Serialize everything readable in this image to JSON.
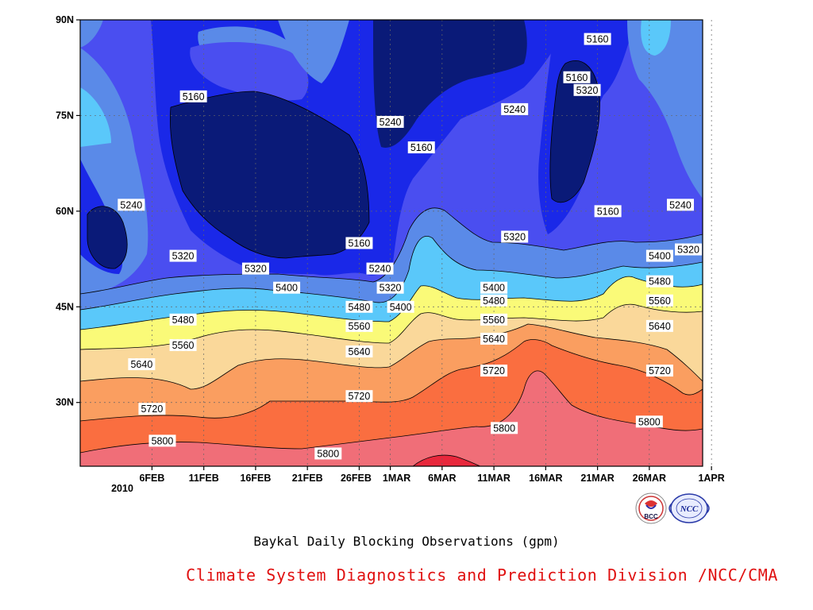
{
  "chart_data": {
    "type": "heatmap",
    "title": "Baykal Daily Blocking Observations (gpm)",
    "y_ticks": [
      "30N",
      "45N",
      "60N",
      "75N",
      "90N"
    ],
    "x_ticks": [
      "6FEB",
      "11FEB",
      "16FEB",
      "21FEB",
      "26FEB",
      "1MAR",
      "6MAR",
      "11MAR",
      "16MAR",
      "21MAR",
      "26MAR",
      "1APR"
    ],
    "x_year": "2010",
    "ylim": [
      20,
      90
    ],
    "contour_levels": [
      5160,
      5240,
      5320,
      5400,
      5480,
      5560,
      5640,
      5720,
      5800
    ],
    "level_colors": [
      "#0a1a78",
      "#1a28e8",
      "#4a4ef0",
      "#5a8ae8",
      "#5ac8fa",
      "#fafa78",
      "#fad89a",
      "#fa9e60",
      "#fa6e40",
      "#f06e78",
      "#e8283c"
    ],
    "grid": true,
    "contour_labels": [
      {
        "value": "5160",
        "date": "10FEB",
        "lat": 78
      },
      {
        "value": "5320",
        "date": "20MAR",
        "lat": 79
      },
      {
        "value": "5240",
        "date": "1MAR",
        "lat": 74
      },
      {
        "value": "5160",
        "date": "4MAR",
        "lat": 70
      },
      {
        "value": "5240",
        "date": "13MAR",
        "lat": 76
      },
      {
        "value": "5160",
        "date": "21MAR",
        "lat": 87
      },
      {
        "value": "5160",
        "date": "19MAR",
        "lat": 81
      },
      {
        "value": "5240",
        "date": "4FEB",
        "lat": 61
      },
      {
        "value": "5160",
        "date": "22MAR",
        "lat": 60
      },
      {
        "value": "5240",
        "date": "29MAR",
        "lat": 61
      },
      {
        "value": "5160",
        "date": "26FEB",
        "lat": 55
      },
      {
        "value": "5320",
        "date": "13MAR",
        "lat": 56
      },
      {
        "value": "5400",
        "date": "27MAR",
        "lat": 53
      },
      {
        "value": "5320",
        "date": "31MAR",
        "lat": 54
      },
      {
        "value": "5320",
        "date": "9FEB",
        "lat": 53
      },
      {
        "value": "5320",
        "date": "16FEB",
        "lat": 51
      },
      {
        "value": "5240",
        "date": "28FEB",
        "lat": 51
      },
      {
        "value": "5400",
        "date": "19FEB",
        "lat": 48
      },
      {
        "value": "5480",
        "date": "27MAR",
        "lat": 49
      },
      {
        "value": "5320",
        "date": "1MAR",
        "lat": 48
      },
      {
        "value": "5400",
        "date": "11MAR",
        "lat": 48
      },
      {
        "value": "5560",
        "date": "27MAR",
        "lat": 46
      },
      {
        "value": "5400",
        "date": "2MAR",
        "lat": 45
      },
      {
        "value": "5480",
        "date": "11MAR",
        "lat": 46
      },
      {
        "value": "5480",
        "date": "26FEB",
        "lat": 45
      },
      {
        "value": "5480",
        "date": "9FEB",
        "lat": 43
      },
      {
        "value": "5560",
        "date": "11MAR",
        "lat": 43
      },
      {
        "value": "5560",
        "date": "26FEB",
        "lat": 42
      },
      {
        "value": "5640",
        "date": "27MAR",
        "lat": 42
      },
      {
        "value": "5640",
        "date": "11MAR",
        "lat": 40
      },
      {
        "value": "5560",
        "date": "9FEB",
        "lat": 39
      },
      {
        "value": "5640",
        "date": "26FEB",
        "lat": 38
      },
      {
        "value": "5720",
        "date": "27MAR",
        "lat": 35
      },
      {
        "value": "5720",
        "date": "11MAR",
        "lat": 35
      },
      {
        "value": "5640",
        "date": "5FEB",
        "lat": 36
      },
      {
        "value": "5720",
        "date": "26FEB",
        "lat": 31
      },
      {
        "value": "5720",
        "date": "6FEB",
        "lat": 29
      },
      {
        "value": "5800",
        "date": "26MAR",
        "lat": 27
      },
      {
        "value": "5800",
        "date": "12MAR",
        "lat": 26
      },
      {
        "value": "5800",
        "date": "7FEB",
        "lat": 24
      },
      {
        "value": "5800",
        "date": "23FEB",
        "lat": 22
      }
    ]
  },
  "caption": {
    "title": "Baykal Daily Blocking Observations (gpm)",
    "credit": "Climate System Diagnostics and Prediction Division /NCC/CMA"
  },
  "logos": {
    "left_text": "BCC",
    "right_text": "NCC"
  }
}
